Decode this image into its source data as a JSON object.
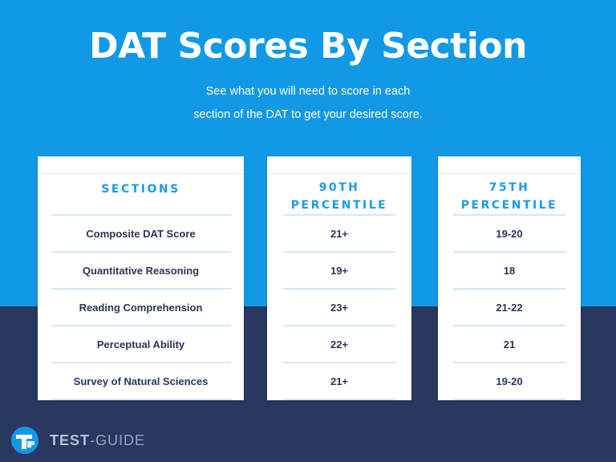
{
  "header": {
    "title": "DAT Scores By Section",
    "subtitle_line1": "See what you will need to score in each",
    "subtitle_line2": "section of the DAT to get your desired score."
  },
  "columns": {
    "sections": {
      "heading": "SECTIONS"
    },
    "p90": {
      "heading_line1": "90TH",
      "heading_line2": "PERCENTILE"
    },
    "p75": {
      "heading_line1": "75TH",
      "heading_line2": "PERCENTILE"
    }
  },
  "rows": [
    {
      "section": "Composite DAT Score",
      "p90": "21+",
      "p75": "19-20"
    },
    {
      "section": "Quantitative Reasoning",
      "p90": "19+",
      "p75": "18"
    },
    {
      "section": "Reading Comprehension",
      "p90": "23+",
      "p75": "21-22"
    },
    {
      "section": "Perceptual Ability",
      "p90": "22+",
      "p75": "21"
    },
    {
      "section": "Survey of Natural Sciences",
      "p90": "21+",
      "p75": "19-20"
    }
  ],
  "logo": {
    "word1": "TEST",
    "separator": "-",
    "word2": "GUIDE",
    "icon": "tg-logo-icon"
  },
  "colors": {
    "primary_blue": "#1299e6",
    "navy": "#283860",
    "heading_blue": "#1a9be6",
    "row_text": "#2a3558"
  }
}
